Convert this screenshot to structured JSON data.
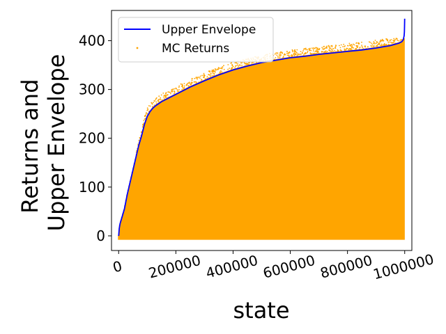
{
  "chart_data": {
    "type": "scatter",
    "title": "",
    "xlabel": "state",
    "ylabel_lines": [
      "Returns and",
      "Upper Envelope"
    ],
    "xlim": [
      -25000,
      1025000
    ],
    "ylim": [
      -30,
      462
    ],
    "x_ticks": [
      0,
      200000,
      400000,
      600000,
      800000,
      1000000
    ],
    "x_tick_labels": [
      "0",
      "200000",
      "400000",
      "600000",
      "800000",
      "1000000"
    ],
    "y_ticks": [
      0,
      100,
      200,
      300,
      400
    ],
    "y_tick_labels": [
      "0",
      "100",
      "200",
      "300",
      "400"
    ],
    "grid": false,
    "legend_position": "top-left",
    "series": [
      {
        "name": "Upper Envelope",
        "kind": "line",
        "color": "#0000ff",
        "x": [
          0,
          2000,
          5000,
          10000,
          20000,
          30000,
          40000,
          50000,
          60000,
          70000,
          80000,
          90000,
          100000,
          110000,
          120000,
          130000,
          150000,
          200000,
          250000,
          300000,
          350000,
          400000,
          450000,
          500000,
          550000,
          600000,
          650000,
          700000,
          750000,
          800000,
          850000,
          900000,
          950000,
          980000,
          990000,
          995000,
          998000,
          999000,
          999500,
          1000000
        ],
        "y": [
          0,
          15,
          25,
          35,
          55,
          85,
          110,
          135,
          160,
          185,
          205,
          228,
          245,
          255,
          262,
          267,
          275,
          290,
          305,
          318,
          330,
          340,
          348,
          355,
          360,
          365,
          368,
          372,
          375,
          378,
          381,
          385,
          390,
          395,
          398,
          402,
          410,
          418,
          430,
          445
        ]
      },
      {
        "name": "MC Returns",
        "kind": "scatter",
        "color": "#ffa500"
      }
    ]
  }
}
